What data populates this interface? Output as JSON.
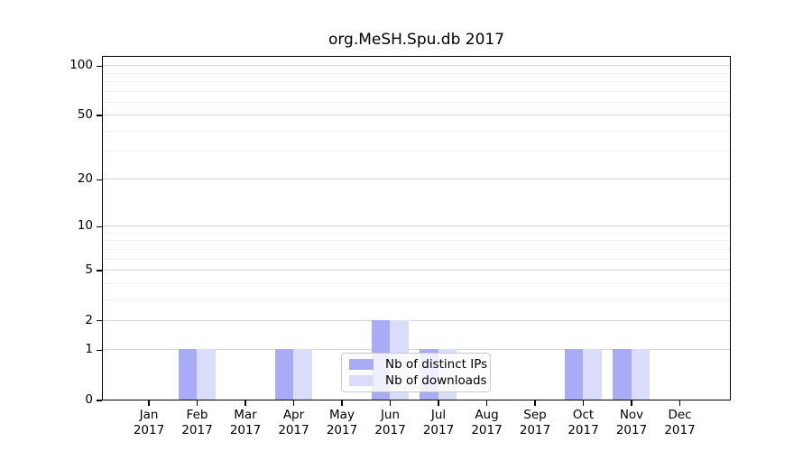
{
  "chart_data": {
    "type": "bar",
    "title": "org.MeSH.Spu.db 2017",
    "categories": [
      {
        "month": "Jan",
        "year": "2017"
      },
      {
        "month": "Feb",
        "year": "2017"
      },
      {
        "month": "Mar",
        "year": "2017"
      },
      {
        "month": "Apr",
        "year": "2017"
      },
      {
        "month": "May",
        "year": "2017"
      },
      {
        "month": "Jun",
        "year": "2017"
      },
      {
        "month": "Jul",
        "year": "2017"
      },
      {
        "month": "Aug",
        "year": "2017"
      },
      {
        "month": "Sep",
        "year": "2017"
      },
      {
        "month": "Oct",
        "year": "2017"
      },
      {
        "month": "Nov",
        "year": "2017"
      },
      {
        "month": "Dec",
        "year": "2017"
      }
    ],
    "series": [
      {
        "name": "Nb of distinct IPs",
        "color": "#a8abf5",
        "values": [
          0,
          1,
          0,
          1,
          0,
          2,
          1,
          0,
          0,
          1,
          1,
          0
        ]
      },
      {
        "name": "Nb of downloads",
        "color": "#dadcfa",
        "values": [
          0,
          1,
          0,
          1,
          0,
          2,
          1,
          0,
          0,
          1,
          1,
          0
        ]
      }
    ],
    "y_axis": {
      "scale": "log10(1+v)",
      "major_ticks": [
        100,
        50,
        20,
        10,
        5,
        2,
        1,
        0
      ],
      "minor_ticks": [
        3,
        4,
        6,
        7,
        8,
        9,
        30,
        40,
        60,
        70,
        80,
        90
      ],
      "top_value": 115
    },
    "grid": true,
    "legend_position": "bottom-center",
    "colors": {
      "grid_major": "#d4d4d4",
      "grid_minor": "#f0f0f0",
      "axis": "#000000",
      "background": "#ffffff"
    }
  }
}
